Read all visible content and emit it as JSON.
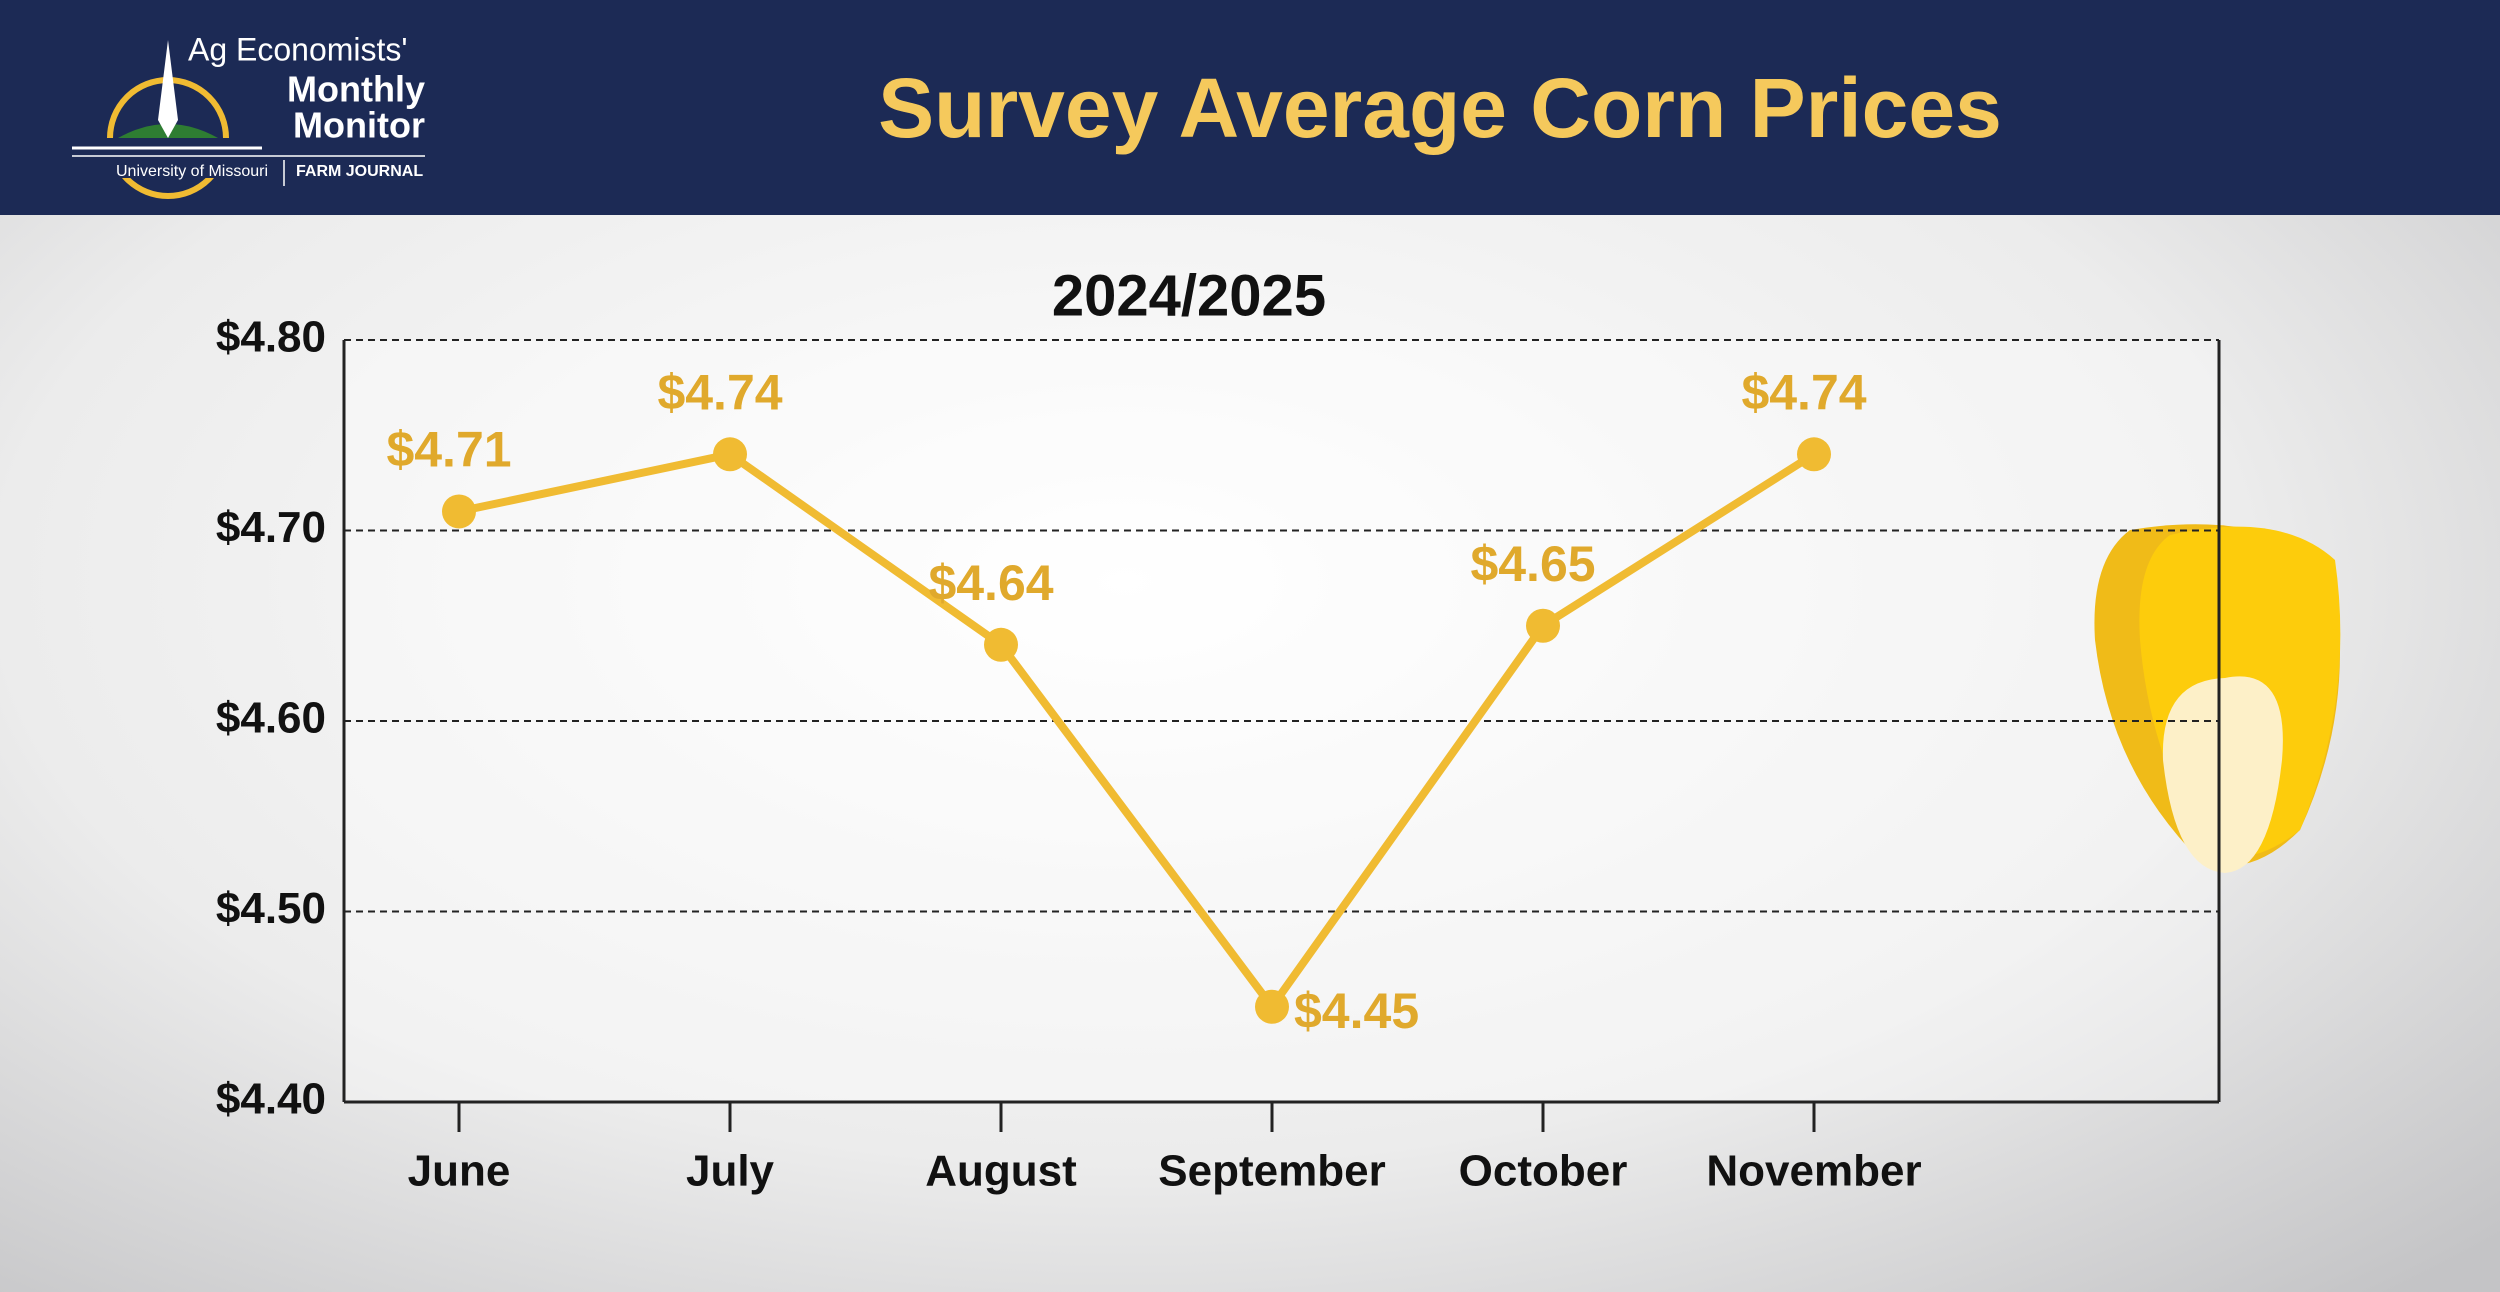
{
  "logo": {
    "line1": "Ag Economists'",
    "line2": "Monthly",
    "line3": "Monitor",
    "org1": "University of Missouri",
    "org2": "FARM JOURNAL"
  },
  "chart_data": {
    "type": "line",
    "title": "Survey Average Corn Prices",
    "subtitle": "2024/2025",
    "categories": [
      "June",
      "July",
      "August",
      "September",
      "October",
      "November"
    ],
    "series": [
      {
        "color": "#f0bb32",
        "values": [
          4.71,
          4.74,
          4.64,
          4.45,
          4.65,
          4.74
        ],
        "value_labels": [
          "$4.71",
          "$4.74",
          "$4.64",
          "$4.45",
          "$4.65",
          "$4.74"
        ]
      }
    ],
    "ylim": [
      4.4,
      4.8
    ],
    "yticks": [
      {
        "value": 4.4,
        "label": "$4.40"
      },
      {
        "value": 4.5,
        "label": "$4.50"
      },
      {
        "value": 4.6,
        "label": "$4.60"
      },
      {
        "value": 4.7,
        "label": "$4.70"
      },
      {
        "value": 4.8,
        "label": "$4.80"
      }
    ],
    "grid": true
  }
}
